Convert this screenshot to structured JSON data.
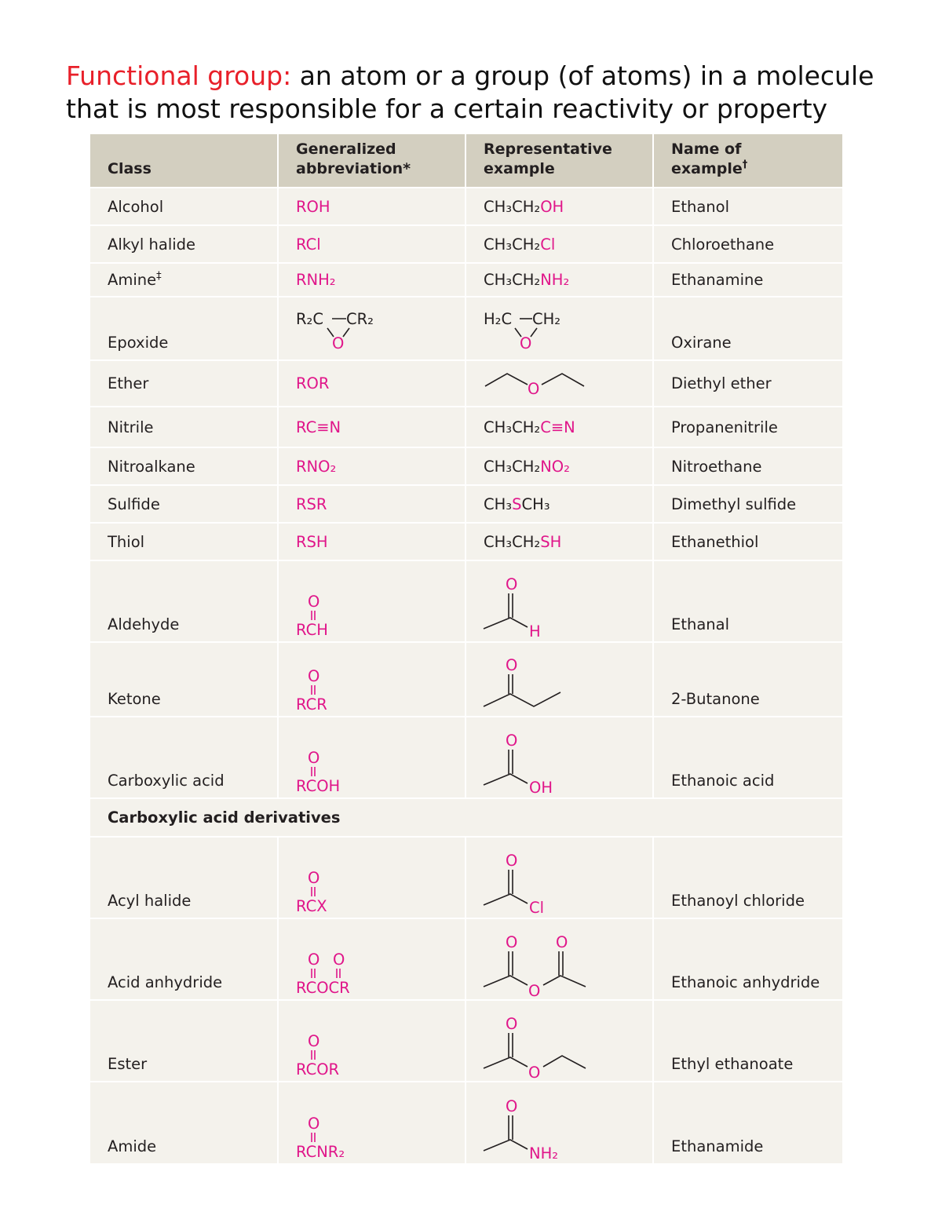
{
  "heading": {
    "term": "Functional group:",
    "definition": " an atom or a group (of atoms) in a molecule that is most responsible for a certain reactivity or property"
  },
  "table": {
    "headers": {
      "class": "Class",
      "abbreviation": "Generalized abbreviation*",
      "example": "Representative example",
      "name": "Name of example",
      "name_mark": "†"
    },
    "rows": {
      "alcohol": {
        "class": "Alcohol",
        "abbr": "ROH",
        "ex_black": "CH₃CH₂",
        "ex_pink": "OH",
        "name": "Ethanol"
      },
      "alkyl_halide": {
        "class": "Alkyl halide",
        "abbr": "RCl",
        "ex_black": "CH₃CH₂",
        "ex_pink": "Cl",
        "name": "Chloroethane"
      },
      "amine": {
        "class": "Amine",
        "class_mark": "‡",
        "abbr": "RNH₂",
        "ex_black": "CH₃CH₂",
        "ex_pink": "NH₂",
        "name": "Ethanamine"
      },
      "epoxide": {
        "class": "Epoxide",
        "abbr_left": "R₂C",
        "abbr_right": "CR₂",
        "abbr_o": "O",
        "ex_left": "H₂C",
        "ex_right": "CH₂",
        "ex_o": "O",
        "name": "Oxirane"
      },
      "ether": {
        "class": "Ether",
        "abbr": "ROR",
        "ex_o": "O",
        "name": "Diethyl ether"
      },
      "nitrile": {
        "class": "Nitrile",
        "abbr": "RC≡N",
        "ex_black": "CH₃CH₂",
        "ex_pink": "C≡N",
        "name": "Propanenitrile"
      },
      "nitroalkane": {
        "class": "Nitroalkane",
        "abbr": "RNO₂",
        "ex_black": "CH₃CH₂",
        "ex_pink": "NO₂",
        "name": "Nitroethane"
      },
      "sulfide": {
        "class": "Sulfide",
        "abbr": "RSR",
        "ex_black1": "CH₃",
        "ex_pink": "S",
        "ex_black2": "CH₃",
        "name": "Dimethyl sulfide"
      },
      "thiol": {
        "class": "Thiol",
        "abbr": "RSH",
        "ex_black": "CH₃CH₂",
        "ex_pink": "SH",
        "name": "Ethanethiol"
      },
      "aldehyde": {
        "class": "Aldehyde",
        "abbr_o": "O",
        "abbr": "RCH",
        "ex_o": "O",
        "ex_x": "H",
        "name": "Ethanal"
      },
      "ketone": {
        "class": "Ketone",
        "abbr_o": "O",
        "abbr": "RCR",
        "ex_o": "O",
        "name": "2-Butanone"
      },
      "carboxylic_acid": {
        "class": "Carboxylic acid",
        "abbr_o": "O",
        "abbr": "RCOH",
        "ex_o": "O",
        "ex_x": "OH",
        "name": "Ethanoic acid"
      }
    },
    "section": "Carboxylic acid derivatives",
    "derivatives": {
      "acyl_halide": {
        "class": "Acyl halide",
        "abbr_o": "O",
        "abbr": "RCX",
        "ex_o": "O",
        "ex_x": "Cl",
        "name": "Ethanoyl chloride"
      },
      "acid_anhydride": {
        "class": "Acid anhydride",
        "abbr_o": "O",
        "abbr": "RCOCR",
        "ex_o": "O",
        "name": "Ethanoic anhydride"
      },
      "ester": {
        "class": "Ester",
        "abbr_o": "O",
        "abbr": "RCOR",
        "ex_o": "O",
        "name": "Ethyl ethanoate"
      },
      "amide": {
        "class": "Amide",
        "abbr_o": "O",
        "abbr": "RCNR₂",
        "ex_o": "O",
        "ex_x": "NH₂",
        "name": "Ethanamide"
      }
    }
  },
  "colors": {
    "term": "#e8202a",
    "functional_group": "#e0168a",
    "header_bg": "#d3cfc0",
    "body_bg": "#f4f2ec"
  }
}
